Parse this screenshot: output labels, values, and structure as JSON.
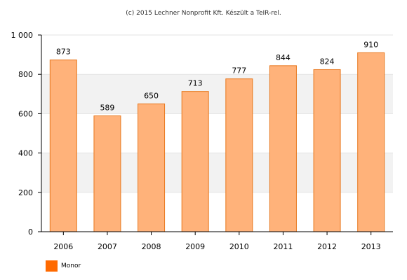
{
  "credit": "(c) 2015 Lechner Nonprofit Kft. Készült a TeIR-rel.",
  "colors": {
    "bar_fill": "#ffb27a",
    "bar_stroke": "#e8781e",
    "legend_swatch": "#ff6a00",
    "band": "#f2f2f2",
    "grid": "#e3e3e3",
    "axis": "#000000"
  },
  "legend": {
    "label": "Monor"
  },
  "chart_data": {
    "type": "bar",
    "categories": [
      "2006",
      "2007",
      "2008",
      "2009",
      "2010",
      "2011",
      "2012",
      "2013"
    ],
    "series": [
      {
        "name": "Monor",
        "values": [
          873,
          589,
          650,
          713,
          777,
          844,
          824,
          910
        ]
      }
    ],
    "data_labels": [
      "873",
      "589",
      "650",
      "713",
      "777",
      "844",
      "824",
      "910"
    ],
    "ylim": [
      0,
      1000
    ],
    "yticks": [
      0,
      200,
      400,
      600,
      800,
      1000
    ],
    "ytick_labels": [
      "0",
      "200",
      "400",
      "600",
      "800",
      "1 000"
    ],
    "title": "",
    "xlabel": "",
    "ylabel": "",
    "grid": true,
    "legend_position": "bottom-left"
  }
}
